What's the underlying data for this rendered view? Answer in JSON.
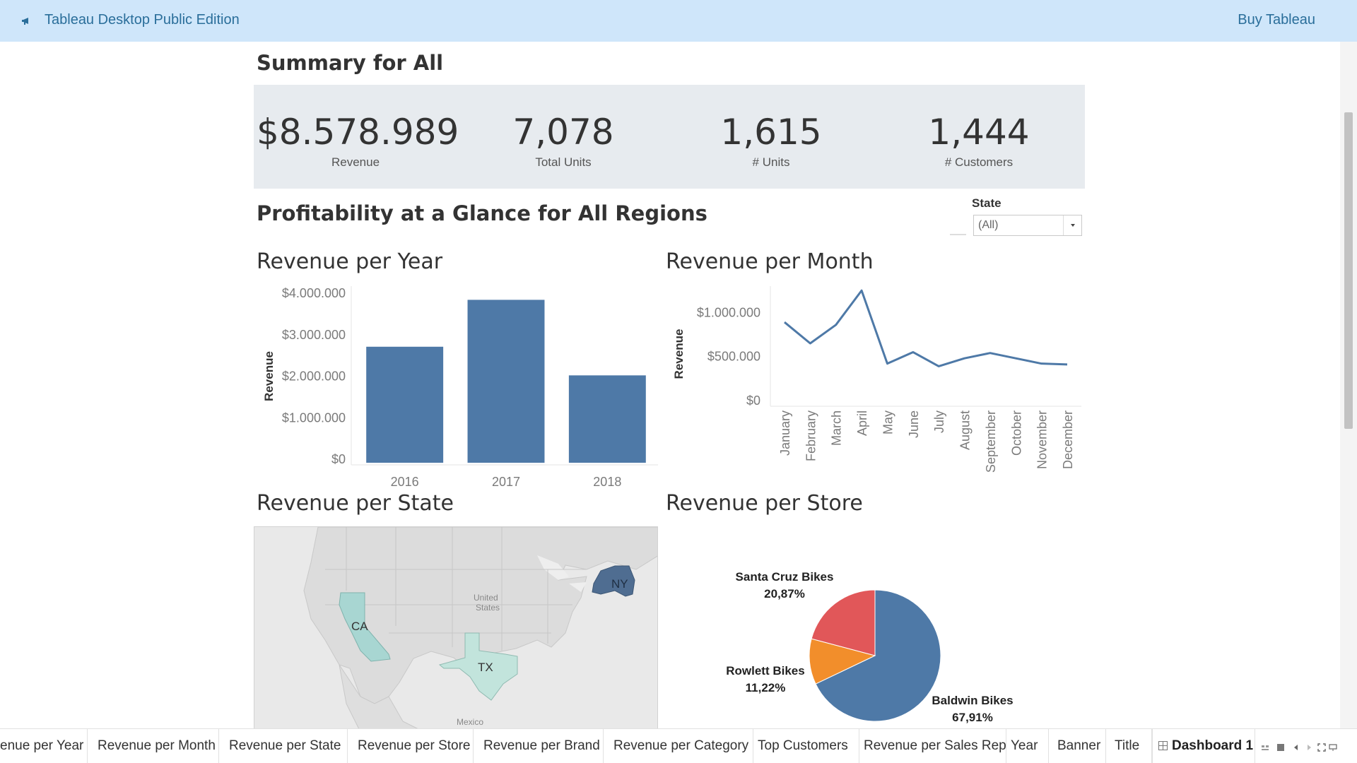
{
  "app": {
    "title": "Tableau Desktop Public Edition",
    "buy_label": "Buy Tableau"
  },
  "summary": {
    "title": "Summary for All",
    "kpis": [
      {
        "value": "$8.578.989",
        "label": "Revenue"
      },
      {
        "value": "7,078",
        "label": "Total Units"
      },
      {
        "value": "1,615",
        "label": "# Units"
      },
      {
        "value": "1,444",
        "label": "# Customers"
      }
    ]
  },
  "glance": {
    "title": "Profitability at a Glance for All Regions"
  },
  "state_filter": {
    "label": "State",
    "selected": "(All)"
  },
  "sections": {
    "revenue_per_year": "Revenue per Year",
    "revenue_per_month": "Revenue per Month",
    "revenue_per_state": "Revenue per State",
    "revenue_per_store": "Revenue per Store"
  },
  "map": {
    "labels": [
      "CA",
      "TX",
      "NY"
    ],
    "country_label_line1": "United",
    "country_label_line2": "States",
    "mexico_label": "Mexico",
    "colors": {
      "CA": "#a8d6d2",
      "TX": "#c2e4dc",
      "NY": "#4f6d91",
      "land": "#dcdcdc",
      "water": "#e8e8e8"
    }
  },
  "tabs": [
    {
      "label": "enue per Year"
    },
    {
      "label": "Revenue per Month"
    },
    {
      "label": "Revenue per State"
    },
    {
      "label": "Revenue per Store"
    },
    {
      "label": "Revenue per Brand"
    },
    {
      "label": "Revenue per Category"
    },
    {
      "label": "Top Customers"
    },
    {
      "label": "Revenue per Sales Rep"
    },
    {
      "label": "Year"
    },
    {
      "label": "Banner"
    },
    {
      "label": "Title"
    },
    {
      "label": "Dashboard 1",
      "active": true
    }
  ],
  "colors": {
    "bar": "#4e79a7",
    "line": "#4e79a7",
    "pie": [
      "#4e79a7",
      "#f28e2b",
      "#e15759"
    ]
  },
  "chart_data": [
    {
      "type": "bar",
      "title": "Revenue per Year",
      "categories": [
        "2016",
        "2017",
        "2018"
      ],
      "values": [
        2710000,
        3840000,
        2020000
      ],
      "ylabel": "Revenue",
      "ylim": [
        0,
        4000000
      ],
      "yticks": [
        {
          "value": 0,
          "label": "$0"
        },
        {
          "value": 1000000,
          "label": "$1.000.000"
        },
        {
          "value": 2000000,
          "label": "$2.000.000"
        },
        {
          "value": 3000000,
          "label": "$3.000.000"
        },
        {
          "value": 4000000,
          "label": "$4.000.000"
        }
      ]
    },
    {
      "type": "line",
      "title": "Revenue per Month",
      "categories": [
        "January",
        "February",
        "March",
        "April",
        "May",
        "June",
        "July",
        "August",
        "September",
        "October",
        "November",
        "December"
      ],
      "values": [
        890000,
        650000,
        860000,
        1250000,
        420000,
        550000,
        390000,
        480000,
        540000,
        480000,
        420000,
        410000
      ],
      "ylabel": "Revenue",
      "ylim": [
        0,
        1300000
      ],
      "yticks": [
        {
          "value": 0,
          "label": "$0"
        },
        {
          "value": 500000,
          "label": "$500.000"
        },
        {
          "value": 1000000,
          "label": "$1.000.000"
        }
      ]
    },
    {
      "type": "pie",
      "title": "Revenue per Store",
      "slices": [
        {
          "name": "Baldwin Bikes",
          "label": "67,91%",
          "value": 67.91
        },
        {
          "name": "Rowlett Bikes",
          "label": "11,22%",
          "value": 11.22
        },
        {
          "name": "Santa Cruz Bikes",
          "label": "20,87%",
          "value": 20.87
        }
      ]
    }
  ]
}
